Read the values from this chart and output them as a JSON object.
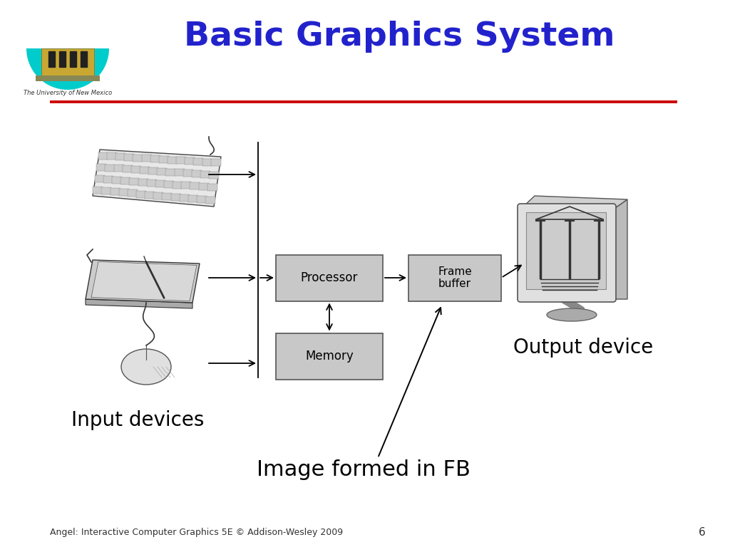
{
  "title": "Basic Graphics System",
  "title_color": "#2222CC",
  "title_fontsize": 34,
  "separator_color": "#CC0000",
  "footer_text": "Angel: Interactive Computer Graphics 5E © Addison-Wesley 2009",
  "page_number": "6",
  "bg_color": "#FFFFFF",
  "box_facecolor": "#C8C8C8",
  "box_edgecolor": "#555555",
  "processor_label": "Processor",
  "framebuffer_label": "Frame\nbuffer",
  "memory_label": "Memory",
  "input_devices_label": "Input devices",
  "output_device_label": "Output device",
  "image_formed_label": "Image formed in FB"
}
